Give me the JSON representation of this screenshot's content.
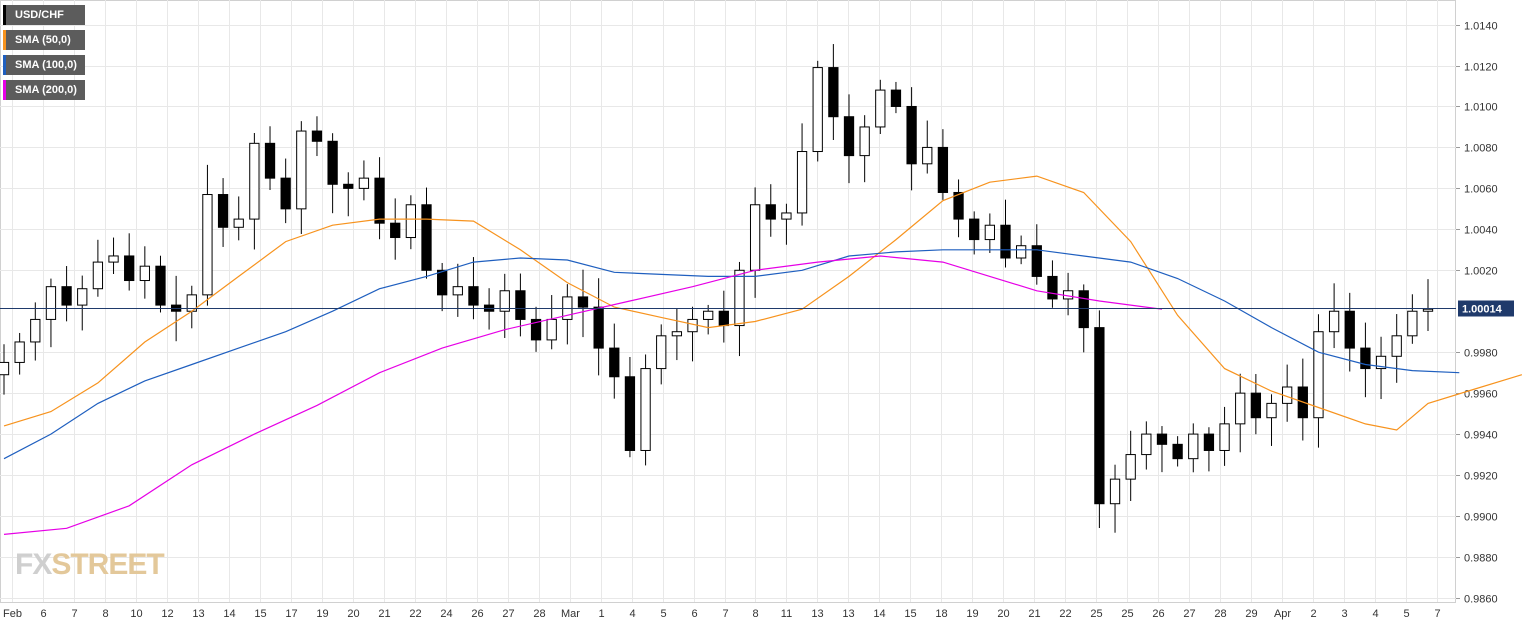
{
  "legend": [
    {
      "label": "USD/CHF",
      "color": "#000000"
    },
    {
      "label": "SMA (50,0)",
      "color": "#f7931e"
    },
    {
      "label": "SMA (100,0)",
      "color": "#1f5fbf"
    },
    {
      "label": "SMA (200,0)",
      "color": "#e600e6"
    }
  ],
  "logo": {
    "prefix": "FX",
    "suffix": "STREET"
  },
  "current_price": "1.00014",
  "chart_data": {
    "type": "candlestick",
    "title": "",
    "symbol": "USD/CHF",
    "x_tick_labels": [
      "Feb",
      "6",
      "7",
      "8",
      "10",
      "12",
      "13",
      "14",
      "15",
      "17",
      "19",
      "20",
      "21",
      "22",
      "24",
      "26",
      "27",
      "28",
      "Mar",
      "1",
      "4",
      "5",
      "6",
      "7",
      "8",
      "11",
      "13",
      "13",
      "14",
      "15",
      "18",
      "19",
      "20",
      "21",
      "22",
      "25",
      "25",
      "26",
      "27",
      "28",
      "29",
      "Apr",
      "2",
      "3",
      "4",
      "5",
      "7"
    ],
    "y_tick_labels": [
      "1.0140",
      "1.0120",
      "1.0100",
      "1.0080",
      "1.0060",
      "1.0040",
      "1.0020",
      "0.9980",
      "0.9960",
      "0.9940",
      "0.9920",
      "0.9900",
      "0.9880",
      "0.9860"
    ],
    "ylim": [
      0.9858,
      1.0152
    ],
    "grid": true,
    "current_price_line": 1.00014,
    "closes": [
      0.9975,
      0.9985,
      0.9996,
      1.0012,
      1.0003,
      1.0011,
      1.0024,
      1.0027,
      1.0015,
      1.0022,
      1.0003,
      1.0,
      1.0008,
      1.0057,
      1.0041,
      1.0045,
      1.0082,
      1.0065,
      1.005,
      1.0088,
      1.0083,
      1.0062,
      1.006,
      1.0065,
      1.0043,
      1.0036,
      1.0052,
      1.002,
      1.0008,
      1.0012,
      1.0003,
      1.0,
      1.001,
      0.9996,
      0.9986,
      0.9996,
      1.0007,
      1.0002,
      0.9982,
      0.9968,
      0.9932,
      0.9972,
      0.9988,
      0.999,
      0.9996,
      1.0,
      0.9993,
      1.002,
      1.0052,
      1.0045,
      1.0048,
      1.0078,
      1.0119,
      1.0095,
      1.0076,
      1.009,
      1.0108,
      1.01,
      1.0072,
      1.008,
      1.0058,
      1.0045,
      1.0035,
      1.0042,
      1.0026,
      1.0032,
      1.0017,
      1.0006,
      1.001,
      0.9992,
      0.9906,
      0.9918,
      0.993,
      0.994,
      0.9935,
      0.9928,
      0.994,
      0.9932,
      0.9945,
      0.996,
      0.9948,
      0.9955,
      0.9963,
      0.9948,
      0.999,
      1.0,
      0.9982,
      0.9972,
      0.9978,
      0.9988,
      1.0,
      1.0001
    ],
    "series": [
      {
        "name": "SMA (50,0)",
        "color": "#f7931e",
        "points": [
          [
            0,
            0.9944
          ],
          [
            3,
            0.9951
          ],
          [
            6,
            0.9965
          ],
          [
            9,
            0.9985
          ],
          [
            12,
            1.0
          ],
          [
            15,
            1.0017
          ],
          [
            18,
            1.0034
          ],
          [
            21,
            1.0042
          ],
          [
            24,
            1.0045
          ],
          [
            27,
            1.0045
          ],
          [
            30,
            1.0044
          ],
          [
            33,
            1.003
          ],
          [
            36,
            1.0014
          ],
          [
            39,
            1.0002
          ],
          [
            42,
            0.9997
          ],
          [
            45,
            0.9992
          ],
          [
            48,
            0.9995
          ],
          [
            51,
            1.0001
          ],
          [
            54,
            1.0017
          ],
          [
            57,
            1.0035
          ],
          [
            60,
            1.0054
          ],
          [
            63,
            1.0063
          ],
          [
            66,
            1.0066
          ],
          [
            69,
            1.0058
          ],
          [
            72,
            1.0034
          ],
          [
            75,
            0.9998
          ],
          [
            78,
            0.9972
          ],
          [
            81,
            0.9961
          ],
          [
            84,
            0.9953
          ],
          [
            87,
            0.9945
          ],
          [
            89,
            0.9942
          ],
          [
            91,
            0.9955
          ],
          [
            94,
            0.9962
          ],
          [
            97,
            0.9969
          ]
        ]
      },
      {
        "name": "SMA (100,0)",
        "color": "#1f5fbf",
        "points": [
          [
            0,
            0.9928
          ],
          [
            3,
            0.994
          ],
          [
            6,
            0.9955
          ],
          [
            9,
            0.9966
          ],
          [
            12,
            0.9974
          ],
          [
            15,
            0.9982
          ],
          [
            18,
            0.999
          ],
          [
            21,
            1.0
          ],
          [
            24,
            1.0011
          ],
          [
            27,
            1.0017
          ],
          [
            30,
            1.0024
          ],
          [
            33,
            1.0026
          ],
          [
            36,
            1.0025
          ],
          [
            39,
            1.0019
          ],
          [
            42,
            1.0018
          ],
          [
            45,
            1.0017
          ],
          [
            48,
            1.0017
          ],
          [
            51,
            1.002
          ],
          [
            54,
            1.0027
          ],
          [
            57,
            1.0029
          ],
          [
            60,
            1.003
          ],
          [
            63,
            1.003
          ],
          [
            66,
            1.003
          ],
          [
            69,
            1.0027
          ],
          [
            72,
            1.0024
          ],
          [
            75,
            1.0016
          ],
          [
            78,
            1.0005
          ],
          [
            81,
            0.9992
          ],
          [
            84,
            0.998
          ],
          [
            87,
            0.9974
          ],
          [
            90,
            0.9971
          ],
          [
            93,
            0.997
          ]
        ]
      },
      {
        "name": "SMA (200,0)",
        "color": "#e600e6",
        "points": [
          [
            0,
            0.9891
          ],
          [
            4,
            0.9894
          ],
          [
            8,
            0.9905
          ],
          [
            12,
            0.9925
          ],
          [
            16,
            0.994
          ],
          [
            20,
            0.9954
          ],
          [
            24,
            0.997
          ],
          [
            28,
            0.9982
          ],
          [
            32,
            0.9991
          ],
          [
            36,
            0.9998
          ],
          [
            40,
            1.0005
          ],
          [
            44,
            1.0012
          ],
          [
            48,
            1.002
          ],
          [
            52,
            1.0024
          ],
          [
            56,
            1.0027
          ],
          [
            60,
            1.0024
          ],
          [
            63,
            1.0017
          ],
          [
            66,
            1.001
          ],
          [
            70,
            1.0005
          ],
          [
            74,
            1.0001
          ]
        ]
      }
    ]
  },
  "colors": {
    "grid": "#e8e8e8",
    "border": "#d0d0d0",
    "price_line": "#1f3a6b",
    "price_tag_bg": "#1f3a6b",
    "candle": "#000000"
  }
}
